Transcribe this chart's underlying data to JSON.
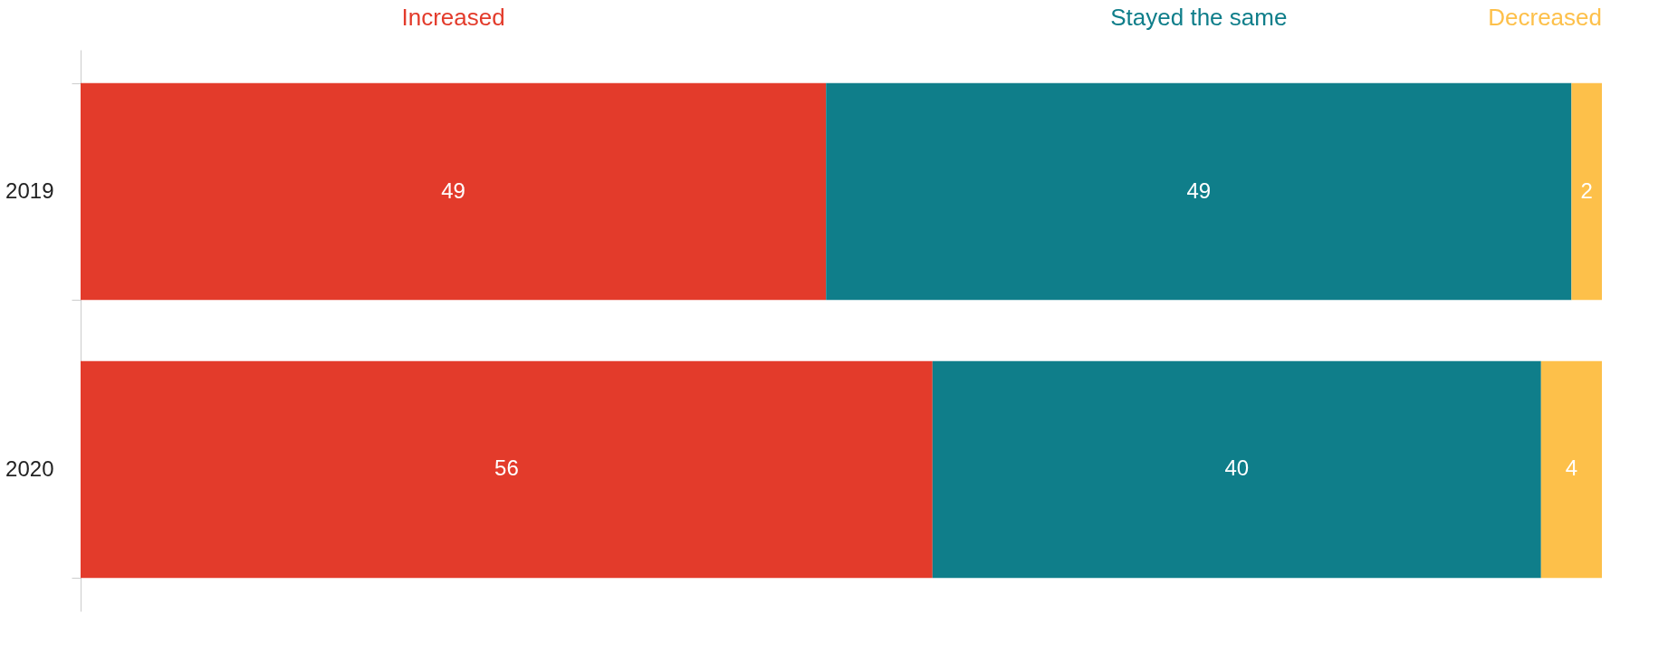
{
  "chart_data": {
    "type": "bar",
    "orientation": "horizontal",
    "stacked": true,
    "categories": [
      "2019",
      "2020"
    ],
    "series": [
      {
        "name": "Increased",
        "color": "#e33b2b",
        "values": [
          49,
          56
        ]
      },
      {
        "name": "Stayed the same",
        "color": "#0f7e8a",
        "values": [
          49,
          40
        ]
      },
      {
        "name": "Decreased",
        "color": "#fdc04a",
        "values": [
          2,
          4
        ]
      }
    ],
    "data_labels": true,
    "legend": "top"
  }
}
